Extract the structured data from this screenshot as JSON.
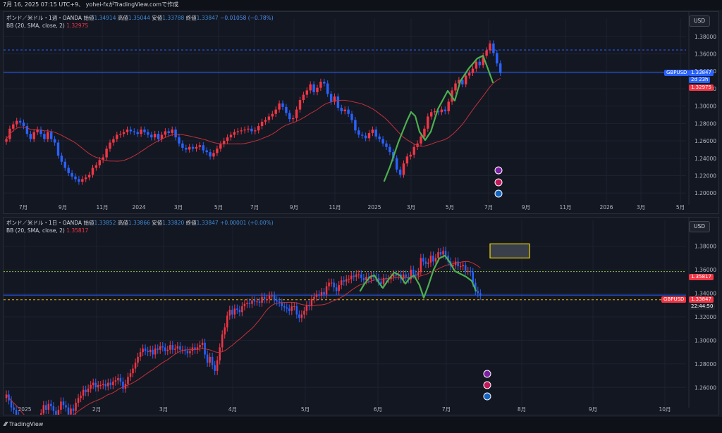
{
  "header": {
    "text": "7月 16, 2025 07:15 UTC+9、 yohei-fxがTradingView.comで作成"
  },
  "currency_button": "USD",
  "footer": {
    "brand": "TradingView"
  },
  "colors": {
    "up": "#f23645",
    "down": "#2962ff",
    "bb": "#c2313b",
    "drawing": "#4caf50",
    "bg": "#131722",
    "grid": "#1e2230"
  },
  "chart_data": [
    {
      "type": "candlestick",
      "symbol": "GBPUSD",
      "legend": {
        "title": "ポンド／米ドル・1週・OANDA",
        "open_label": "始値",
        "open": "1.34914",
        "high_label": "高値",
        "high": "1.35044",
        "low_label": "安値",
        "low": "1.33788",
        "close_label": "終値",
        "close": "1.33847",
        "change": "−0.01058 (−0.78%)",
        "bb_label": "BB (20, SMA, close, 2)",
        "bb_value": "1.32975"
      },
      "y_ticks": [
        "1.38000",
        "1.36000",
        "1.34000",
        "1.32000",
        "1.30000",
        "1.28000",
        "1.26000",
        "1.24000",
        "1.22000",
        "1.20000"
      ],
      "ylim": [
        1.188,
        1.392
      ],
      "x_ticks": [
        "7月",
        "9月",
        "11月",
        "2024",
        "3月",
        "5月",
        "7月",
        "9月",
        "11月",
        "2025",
        "3月",
        "5月",
        "7月",
        "9月",
        "11月",
        "2026",
        "3月",
        "5月"
      ],
      "price_label": {
        "symbol": "GBPUSD",
        "price": "1.33847",
        "countdown": "2d 23h"
      },
      "bb_label_value": "1.32975",
      "close_series": [
        1.262,
        1.274,
        1.279,
        1.283,
        1.281,
        1.277,
        1.268,
        1.262,
        1.27,
        1.273,
        1.268,
        1.262,
        1.27,
        1.262,
        1.258,
        1.243,
        1.236,
        1.229,
        1.223,
        1.219,
        1.216,
        1.213,
        1.216,
        1.218,
        1.221,
        1.229,
        1.232,
        1.238,
        1.241,
        1.251,
        1.258,
        1.262,
        1.267,
        1.268,
        1.27,
        1.273,
        1.271,
        1.27,
        1.268,
        1.273,
        1.27,
        1.267,
        1.264,
        1.268,
        1.262,
        1.267,
        1.271,
        1.269,
        1.273,
        1.264,
        1.257,
        1.252,
        1.25,
        1.253,
        1.251,
        1.253,
        1.255,
        1.249,
        1.247,
        1.242,
        1.246,
        1.251,
        1.256,
        1.26,
        1.264,
        1.267,
        1.27,
        1.271,
        1.272,
        1.273,
        1.274,
        1.271,
        1.272,
        1.277,
        1.282,
        1.284,
        1.288,
        1.291,
        1.296,
        1.303,
        1.299,
        1.292,
        1.285,
        1.286,
        1.296,
        1.307,
        1.313,
        1.318,
        1.325,
        1.316,
        1.321,
        1.328,
        1.326,
        1.314,
        1.305,
        1.311,
        1.298,
        1.294,
        1.296,
        1.291,
        1.284,
        1.272,
        1.267,
        1.266,
        1.263,
        1.269,
        1.273,
        1.265,
        1.262,
        1.257,
        1.253,
        1.247,
        1.24,
        1.227,
        1.221,
        1.234,
        1.242,
        1.244,
        1.253,
        1.257,
        1.265,
        1.274,
        1.288,
        1.293,
        1.294,
        1.293,
        1.296,
        1.294,
        1.305,
        1.318,
        1.326,
        1.33,
        1.325,
        1.335,
        1.338,
        1.343,
        1.351,
        1.347,
        1.358,
        1.364,
        1.372,
        1.361,
        1.349,
        1.338
      ]
    },
    {
      "type": "candlestick",
      "symbol": "GBPUSD",
      "legend": {
        "title": "ポンド／米ドル・1日・OANDA",
        "open_label": "始値",
        "open": "1.33852",
        "high_label": "高値",
        "high": "1.33866",
        "low_label": "安値",
        "low": "1.33820",
        "close_label": "終値",
        "close": "1.33847",
        "change": "+0.00001 (+0.00%)",
        "bb_label": "BB (20, SMA, close, 2)",
        "bb_value": "1.35817"
      },
      "y_ticks": [
        "1.38000",
        "1.36000",
        "1.34000",
        "1.32000",
        "1.30000",
        "1.28000",
        "1.26000"
      ],
      "ylim": [
        1.244,
        1.396
      ],
      "x_ticks": [
        "2025",
        "2月",
        "3月",
        "4月",
        "5月",
        "6月",
        "7月",
        "8月",
        "9月",
        "10月"
      ],
      "price_label": {
        "symbol": "GBPUSD",
        "price": "1.33847",
        "countdown": "22:44:50"
      },
      "bb_label_value": "1.35817",
      "close_series": [
        1.254,
        1.249,
        1.243,
        1.241,
        1.236,
        1.231,
        1.223,
        1.221,
        1.216,
        1.218,
        1.224,
        1.23,
        1.228,
        1.232,
        1.238,
        1.245,
        1.241,
        1.246,
        1.244,
        1.24,
        1.236,
        1.241,
        1.248,
        1.245,
        1.243,
        1.237,
        1.242,
        1.24,
        1.247,
        1.251,
        1.253,
        1.258,
        1.256,
        1.259,
        1.262,
        1.264,
        1.26,
        1.262,
        1.262,
        1.263,
        1.261,
        1.264,
        1.262,
        1.265,
        1.266,
        1.268,
        1.265,
        1.259,
        1.263,
        1.269,
        1.272,
        1.276,
        1.281,
        1.286,
        1.29,
        1.293,
        1.291,
        1.29,
        1.292,
        1.288,
        1.293,
        1.292,
        1.295,
        1.294,
        1.291,
        1.292,
        1.296,
        1.292,
        1.293,
        1.295,
        1.292,
        1.292,
        1.291,
        1.289,
        1.291,
        1.294,
        1.292,
        1.294,
        1.296,
        1.298,
        1.288,
        1.281,
        1.286,
        1.279,
        1.274,
        1.283,
        1.294,
        1.305,
        1.311,
        1.321,
        1.326,
        1.322,
        1.327,
        1.326,
        1.324,
        1.329,
        1.331,
        1.332,
        1.331,
        1.334,
        1.333,
        1.333,
        1.332,
        1.337,
        1.335,
        1.335,
        1.338,
        1.338,
        1.334,
        1.333,
        1.332,
        1.329,
        1.328,
        1.327,
        1.325,
        1.329,
        1.329,
        1.322,
        1.319,
        1.322,
        1.325,
        1.33,
        1.329,
        1.335,
        1.337,
        1.339,
        1.338,
        1.341,
        1.339,
        1.346,
        1.349,
        1.349,
        1.345,
        1.342,
        1.347,
        1.351,
        1.35,
        1.352,
        1.352,
        1.355,
        1.354,
        1.356,
        1.356,
        1.353,
        1.351,
        1.354,
        1.352,
        1.355,
        1.354,
        1.353,
        1.35,
        1.348,
        1.353,
        1.352,
        1.352,
        1.354,
        1.356,
        1.355,
        1.356,
        1.352,
        1.356,
        1.354,
        1.352,
        1.36,
        1.356,
        1.355,
        1.358,
        1.37,
        1.367,
        1.365,
        1.366,
        1.372,
        1.367,
        1.37,
        1.375,
        1.373,
        1.376,
        1.372,
        1.367,
        1.363,
        1.364,
        1.367,
        1.363,
        1.363,
        1.364,
        1.359,
        1.359,
        1.358,
        1.349,
        1.342,
        1.34,
        1.338
      ]
    }
  ]
}
